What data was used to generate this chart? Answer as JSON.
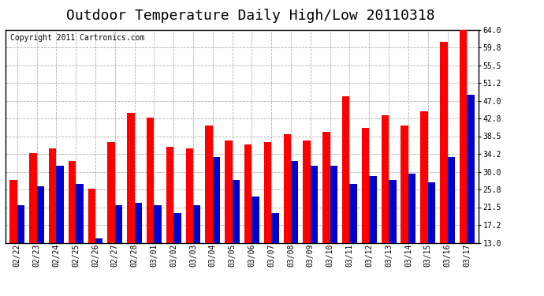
{
  "title": "Outdoor Temperature Daily High/Low 20110318",
  "copyright_text": "Copyright 2011 Cartronics.com",
  "dates": [
    "02/22",
    "02/23",
    "02/24",
    "02/25",
    "02/26",
    "02/27",
    "02/28",
    "03/01",
    "03/02",
    "03/03",
    "03/04",
    "03/05",
    "03/06",
    "03/07",
    "03/08",
    "03/09",
    "03/10",
    "03/11",
    "03/12",
    "03/13",
    "03/14",
    "03/15",
    "03/16",
    "03/17"
  ],
  "highs": [
    28.0,
    34.5,
    35.5,
    32.5,
    26.0,
    37.0,
    44.0,
    43.0,
    36.0,
    35.5,
    41.0,
    37.5,
    36.5,
    37.0,
    39.0,
    37.5,
    39.5,
    48.0,
    40.5,
    43.5,
    41.0,
    44.5,
    61.0,
    64.5
  ],
  "lows": [
    22.0,
    26.5,
    31.5,
    27.0,
    14.0,
    22.0,
    22.5,
    22.0,
    20.0,
    22.0,
    33.5,
    28.0,
    24.0,
    20.0,
    32.5,
    31.5,
    31.5,
    27.0,
    29.0,
    28.0,
    29.5,
    27.5,
    33.5,
    48.5
  ],
  "high_color": "#ff0000",
  "low_color": "#0000cc",
  "bg_color": "#ffffff",
  "plot_bg_color": "#ffffff",
  "grid_color": "#b0b0b0",
  "ymin": 13.0,
  "ymax": 64.0,
  "yticks": [
    13.0,
    17.2,
    21.5,
    25.8,
    30.0,
    34.2,
    38.5,
    42.8,
    47.0,
    51.2,
    55.5,
    59.8,
    64.0
  ],
  "ytick_labels": [
    "13.0",
    "17.2",
    "21.5",
    "25.8",
    "30.0",
    "34.2",
    "38.5",
    "42.8",
    "47.0",
    "51.2",
    "55.5",
    "59.8",
    "64.0"
  ],
  "title_fontsize": 13,
  "tick_fontsize": 7,
  "copyright_fontsize": 7,
  "bar_width": 0.38
}
